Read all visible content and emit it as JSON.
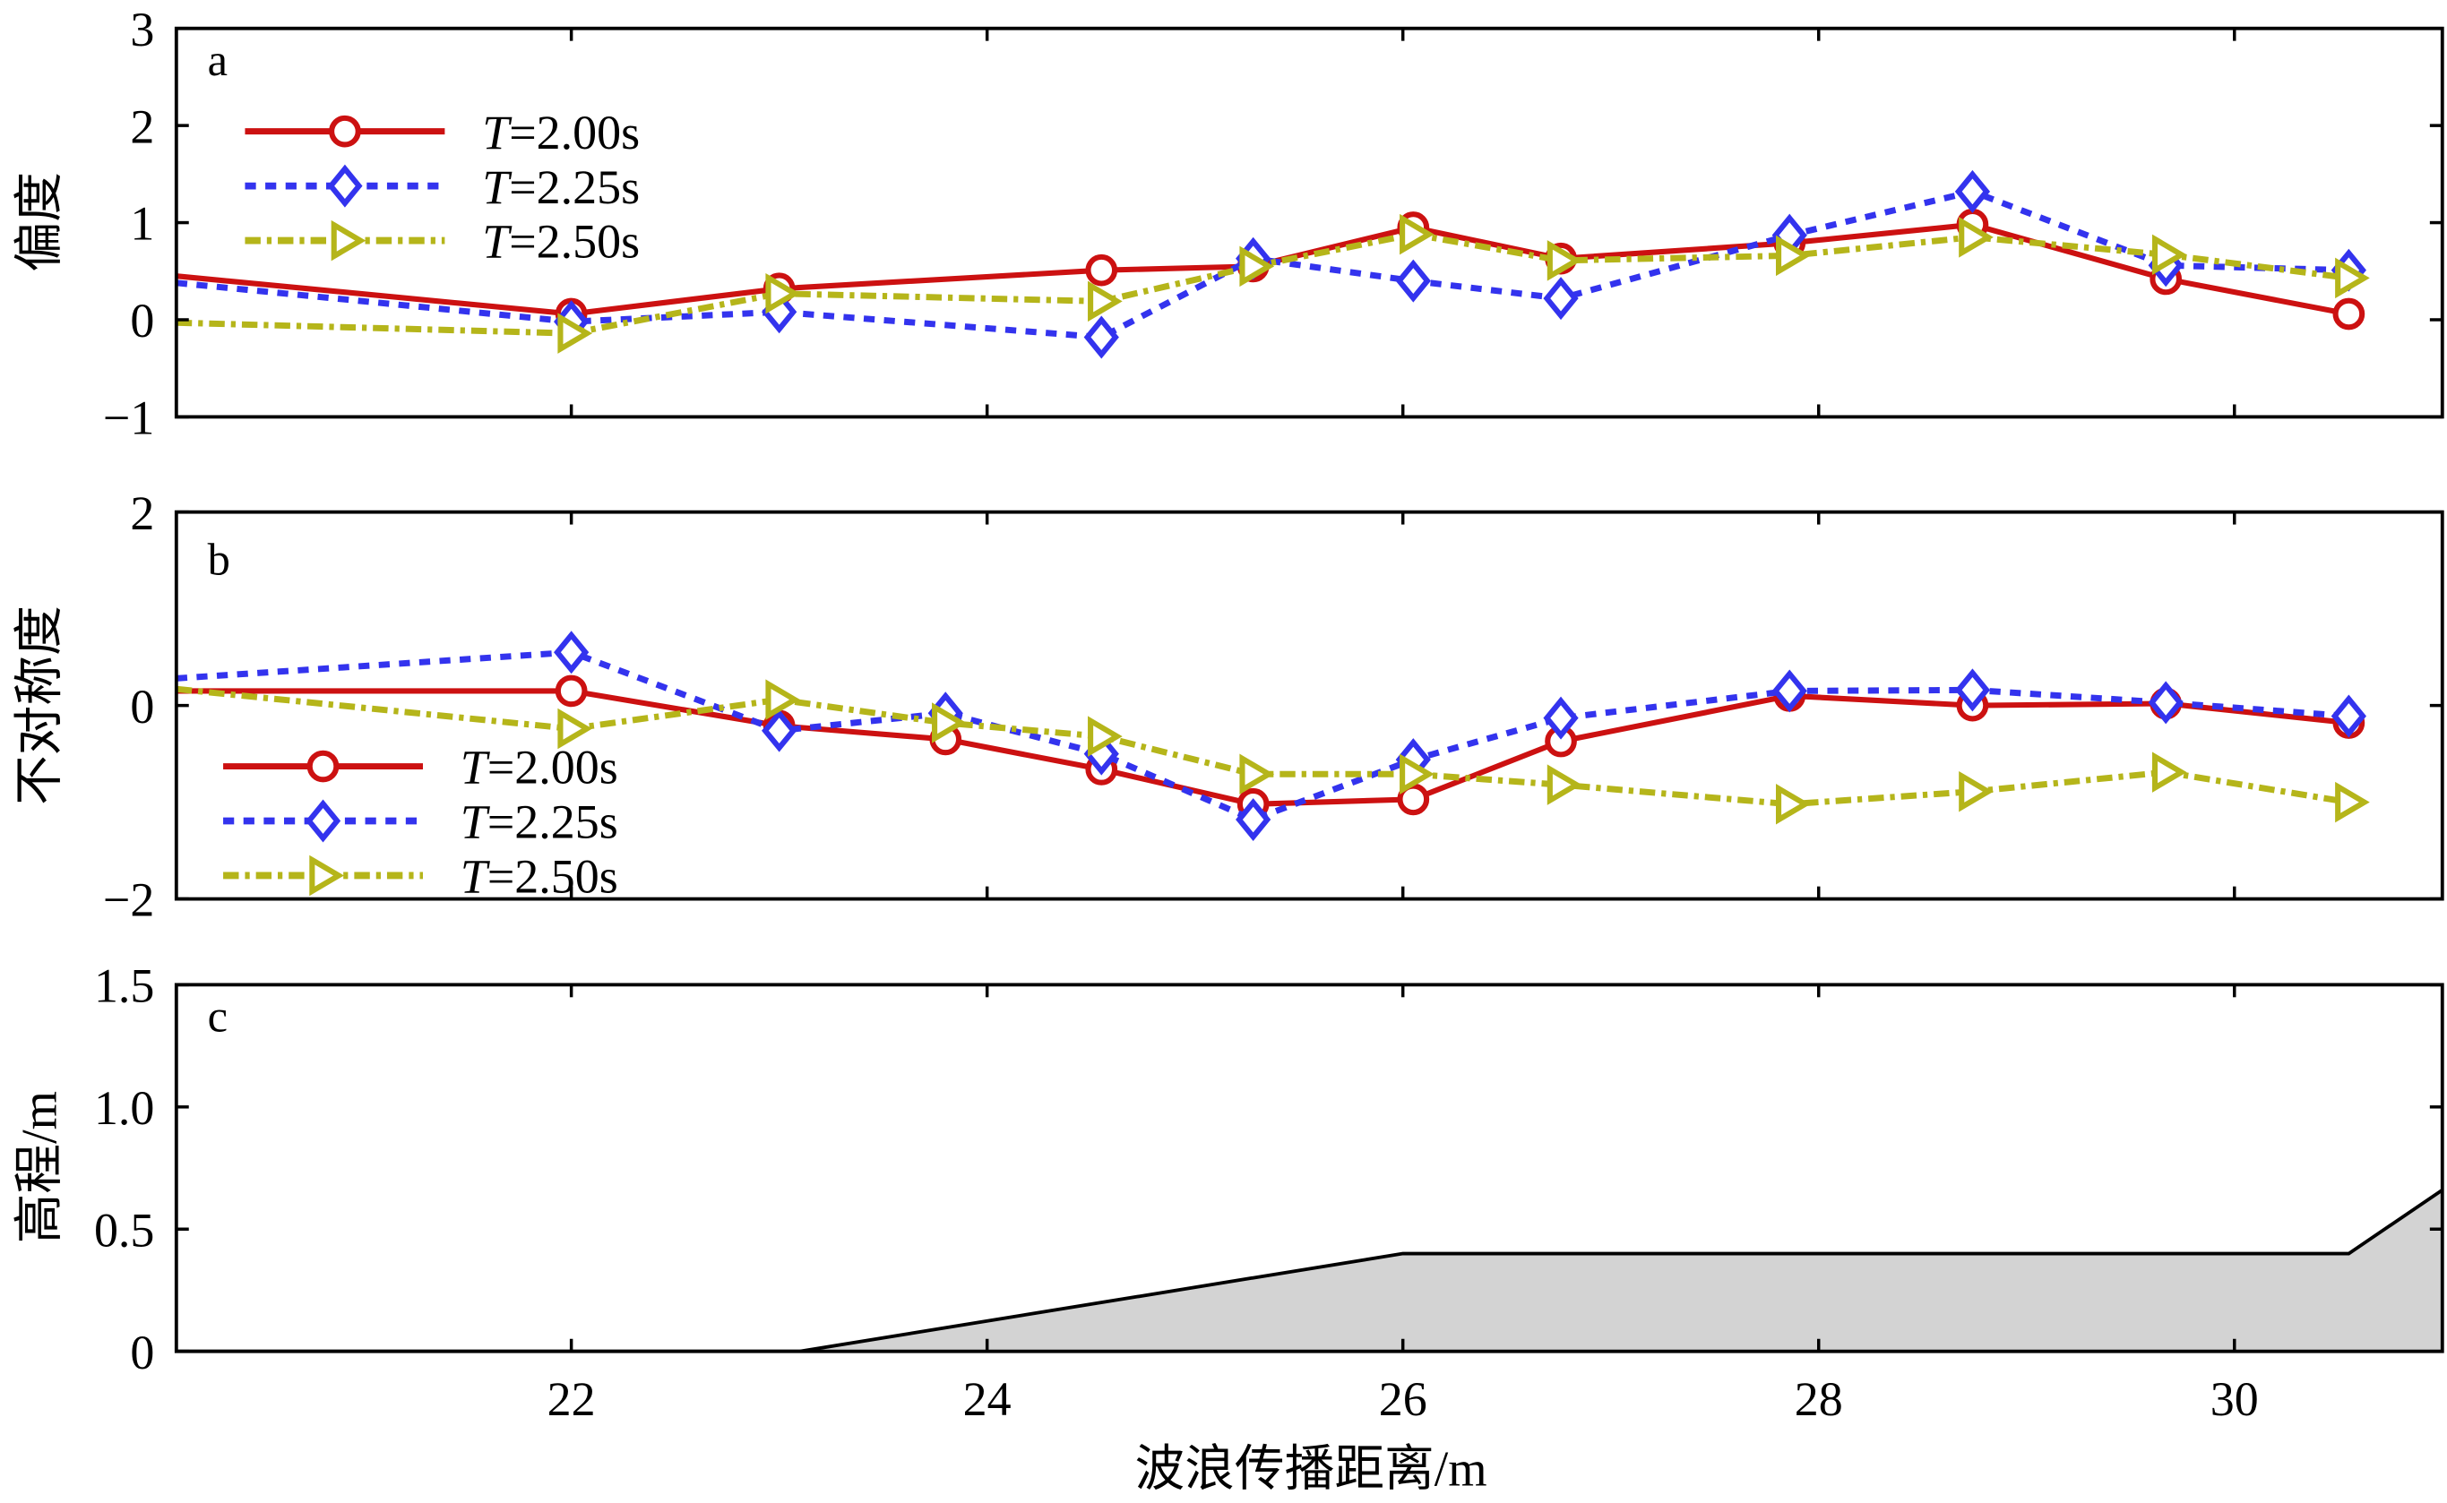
{
  "chart_data": [
    {
      "type": "line",
      "panel_label": "a",
      "ylabel": "偏度",
      "xlabel": "",
      "xlim": [
        20.1,
        31.0
      ],
      "ylim": [
        -1,
        3
      ],
      "xticks": [
        22,
        24,
        26,
        28,
        30
      ],
      "yticks": [
        -1,
        0,
        1,
        2,
        3
      ],
      "ytick_labels": [
        "−1",
        "0",
        "1",
        "2",
        "3"
      ],
      "legend_position": "top-left",
      "x": [
        20.1,
        22.0,
        23.0,
        24.55,
        25.28,
        26.05,
        26.76,
        27.86,
        28.74,
        29.67,
        30.55
      ],
      "series": [
        {
          "name": "T=2.00s",
          "name_italic": "T",
          "name_rest": "=2.00s",
          "color": "#cc1111",
          "dash": "solid",
          "marker": "circle",
          "values": [
            0.45,
            0.06,
            0.32,
            0.51,
            0.55,
            0.95,
            0.63,
            0.79,
            0.98,
            0.42,
            0.06
          ]
        },
        {
          "name": "T=2.25s",
          "name_italic": "T",
          "name_rest": "=2.25s",
          "color": "#3333ee",
          "dash": "dotted",
          "marker": "diamond",
          "values": [
            0.38,
            -0.02,
            0.08,
            -0.18,
            0.63,
            0.4,
            0.22,
            0.87,
            1.32,
            0.56,
            0.51
          ]
        },
        {
          "name": "T=2.50s",
          "name_italic": "T",
          "name_rest": "=2.50s",
          "color": "#b5b51a",
          "dash": "dashdot",
          "marker": "triangle-right",
          "values": [
            -0.03,
            -0.14,
            0.27,
            0.19,
            0.55,
            0.88,
            0.61,
            0.66,
            0.85,
            0.67,
            0.43
          ]
        }
      ]
    },
    {
      "type": "line",
      "panel_label": "b",
      "ylabel": "不对称度",
      "xlabel": "",
      "xlim": [
        20.1,
        31.0
      ],
      "ylim": [
        -2,
        2
      ],
      "xticks": [
        22,
        24,
        26,
        28,
        30
      ],
      "yticks": [
        -2,
        0,
        2
      ],
      "ytick_labels": [
        "−2",
        "0",
        "2"
      ],
      "legend_position": "bottom-left",
      "x": [
        20.1,
        22.0,
        23.0,
        23.8,
        24.55,
        25.28,
        26.05,
        26.76,
        27.86,
        28.74,
        29.67,
        30.55
      ],
      "series": [
        {
          "name": "T=2.00s",
          "name_italic": "T",
          "name_rest": "=2.00s",
          "color": "#cc1111",
          "dash": "solid",
          "marker": "circle",
          "values": [
            0.15,
            0.15,
            -0.21,
            -0.35,
            -0.66,
            -1.02,
            -0.97,
            -0.37,
            0.1,
            0.0,
            0.02,
            -0.18
          ]
        },
        {
          "name": "T=2.25s",
          "name_italic": "T",
          "name_rest": "=2.25s",
          "color": "#3333ee",
          "dash": "dotted",
          "marker": "diamond",
          "values": [
            0.28,
            0.55,
            -0.26,
            -0.08,
            -0.5,
            -1.18,
            -0.56,
            -0.13,
            0.15,
            0.16,
            0.03,
            -0.11
          ]
        },
        {
          "name": "T=2.50s",
          "name_italic": "T",
          "name_rest": "=2.50s",
          "color": "#b5b51a",
          "dash": "dashdot",
          "marker": "triangle-right",
          "values": [
            0.17,
            -0.24,
            0.06,
            -0.18,
            -0.32,
            -0.71,
            -0.71,
            -0.82,
            -1.02,
            -0.89,
            -0.69,
            -1.0
          ]
        }
      ]
    },
    {
      "type": "area",
      "panel_label": "c",
      "ylabel": "高程/m",
      "xlabel": "波浪传播距离/m",
      "xlim": [
        20.1,
        31.0
      ],
      "ylim": [
        0,
        1.5
      ],
      "xticks": [
        22,
        24,
        26,
        28,
        30
      ],
      "xtick_labels": [
        "22",
        "24",
        "26",
        "28",
        "30"
      ],
      "yticks": [
        0,
        0.5,
        1.0,
        1.5
      ],
      "ytick_labels": [
        "0",
        "0.5",
        "1.0",
        "1.5"
      ],
      "fill_color": "#d3d3d3",
      "x": [
        20.1,
        23.1,
        26.0,
        30.55,
        31.0
      ],
      "values": [
        0,
        0,
        0.4,
        0.4,
        0.66
      ]
    }
  ]
}
